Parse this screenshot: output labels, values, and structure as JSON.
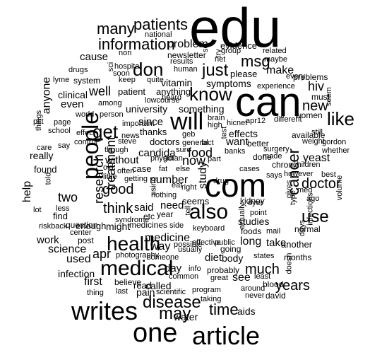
{
  "words": [
    {
      "text": "edu",
      "size": 78
    },
    {
      "text": "can",
      "size": 58
    },
    {
      "text": "com",
      "size": 46
    },
    {
      "text": "one",
      "size": 38
    },
    {
      "text": "article",
      "size": 36
    },
    {
      "text": "writes",
      "size": 36
    },
    {
      "text": "will",
      "size": 34
    },
    {
      "text": "people",
      "size": 32
    },
    {
      "text": "medical",
      "size": 30
    },
    {
      "text": "also",
      "size": 30
    },
    {
      "text": "health",
      "size": 28
    },
    {
      "text": "like",
      "size": 26
    },
    {
      "text": "get",
      "size": 26
    },
    {
      "text": "know",
      "size": 26
    },
    {
      "text": "don",
      "size": 26
    },
    {
      "text": "just",
      "size": 24
    },
    {
      "text": "use",
      "size": 24
    },
    {
      "text": "disease",
      "size": 24
    },
    {
      "text": "may",
      "size": 24
    },
    {
      "text": "many",
      "size": 22
    },
    {
      "text": "information",
      "size": 22
    },
    {
      "text": "patients",
      "size": 22
    },
    {
      "text": "msg",
      "size": 22
    },
    {
      "text": "cancer",
      "size": 22
    },
    {
      "text": "time",
      "size": 22
    },
    {
      "text": "new",
      "size": 20
    },
    {
      "text": "good",
      "size": 20
    },
    {
      "text": "think",
      "size": 20
    },
    {
      "text": "much",
      "size": 20
    },
    {
      "text": "years",
      "size": 20
    },
    {
      "text": "doctor",
      "size": 20
    },
    {
      "text": "treatment",
      "size": 18
    },
    {
      "text": "research",
      "size": 18
    },
    {
      "text": "two",
      "size": 18
    },
    {
      "text": "well",
      "size": 18
    },
    {
      "text": "food",
      "size": 18
    },
    {
      "text": "now",
      "size": 18
    },
    {
      "text": "apr",
      "size": 18
    },
    {
      "text": "hiv",
      "size": 18
    },
    {
      "text": "help",
      "size": 16
    },
    {
      "text": "anyone",
      "size": 16
    },
    {
      "text": "study",
      "size": 16
    },
    {
      "text": "problem",
      "size": 16
    },
    {
      "text": "number",
      "size": 16
    },
    {
      "text": "medicine",
      "size": 16
    },
    {
      "text": "used",
      "size": 16
    },
    {
      "text": "science",
      "size": 16
    },
    {
      "text": "see",
      "size": 16
    },
    {
      "text": "way",
      "size": 16
    },
    {
      "text": "first",
      "size": 16
    },
    {
      "text": "make",
      "size": 16
    },
    {
      "text": "long",
      "size": 16
    },
    {
      "text": "yeast",
      "size": 16
    },
    {
      "text": "day",
      "size": 15
    },
    {
      "text": "work",
      "size": 15
    },
    {
      "text": "cause",
      "size": 15
    },
    {
      "text": "even",
      "size": 15
    },
    {
      "text": "without",
      "size": 15
    },
    {
      "text": "diet",
      "size": 15
    },
    {
      "text": "since",
      "size": 15
    },
    {
      "text": "candida",
      "size": 15
    },
    {
      "text": "said",
      "size": 15
    },
    {
      "text": "need",
      "size": 15
    },
    {
      "text": "want",
      "size": 15
    },
    {
      "text": "take",
      "size": 15
    },
    {
      "text": "vitamin",
      "size": 14
    },
    {
      "text": "really",
      "size": 14
    },
    {
      "text": "infection",
      "size": 14
    },
    {
      "text": "called",
      "size": 14
    },
    {
      "text": "pain",
      "size": 14
    },
    {
      "text": "aids",
      "size": 14
    },
    {
      "text": "water",
      "size": 14
    },
    {
      "text": "might",
      "size": 14
    },
    {
      "text": "symptoms",
      "size": 14
    },
    {
      "text": "studies",
      "size": 14
    },
    {
      "text": "body",
      "size": 14
    },
    {
      "text": "clinical",
      "size": 14
    },
    {
      "text": "something",
      "size": 14
    },
    {
      "text": "university",
      "size": 14
    },
    {
      "text": "effects",
      "size": 14
    },
    {
      "text": "read",
      "size": 13
    },
    {
      "text": "another",
      "size": 13
    },
    {
      "text": "find",
      "size": 13
    },
    {
      "text": "found",
      "size": 13
    },
    {
      "text": "seems",
      "size": 13
    },
    {
      "text": "doctors",
      "size": 13
    },
    {
      "text": "enough",
      "size": 13
    },
    {
      "text": "case",
      "size": 13
    },
    {
      "text": "thanks",
      "size": 13
    },
    {
      "text": "please",
      "size": 13
    },
    {
      "text": "patient",
      "size": 13
    },
    {
      "text": "anything",
      "size": 13
    },
    {
      "text": "evidence",
      "size": 13
    },
    {
      "text": "newsletter",
      "size": 12
    },
    {
      "text": "months",
      "size": 12
    },
    {
      "text": "david",
      "size": 12
    },
    {
      "text": "blood",
      "size": 12
    },
    {
      "text": "normal",
      "size": 12
    },
    {
      "text": "foods",
      "size": 12
    },
    {
      "text": "women",
      "size": 12
    },
    {
      "text": "believe",
      "size": 12
    },
    {
      "text": "year",
      "size": 12
    },
    {
      "text": "system",
      "size": 12
    },
    {
      "text": "etc",
      "size": 12
    },
    {
      "text": "question",
      "size": 12
    },
    {
      "text": "going",
      "size": 12
    },
    {
      "text": "probably",
      "size": 12
    },
    {
      "text": "post",
      "size": 12
    },
    {
      "text": "kidney",
      "size": 12
    },
    {
      "text": "must",
      "size": 12
    },
    {
      "text": "medicines",
      "size": 12
    },
    {
      "text": "better",
      "size": 12
    },
    {
      "text": "problems",
      "size": 12
    },
    {
      "text": "chronic",
      "size": 12
    },
    {
      "text": "available",
      "size": 12
    },
    {
      "text": "done",
      "size": 12
    },
    {
      "text": "keyboard",
      "size": 11
    },
    {
      "text": "actually",
      "size": 11
    },
    {
      "text": "info",
      "size": 11
    },
    {
      "text": "least",
      "size": 11
    },
    {
      "text": "apr12",
      "size": 11
    },
    {
      "text": "different",
      "size": 11
    },
    {
      "text": "taking",
      "size": 11
    },
    {
      "text": "program",
      "size": 11
    },
    {
      "text": "scientific",
      "size": 11
    },
    {
      "text": "brain",
      "size": 11
    },
    {
      "text": "high",
      "size": 11
    },
    {
      "text": "hicnet",
      "size": 11
    },
    {
      "text": "drug",
      "size": 11
    },
    {
      "text": "gordon",
      "size": 11
    },
    {
      "text": "weight",
      "size": 11
    },
    {
      "text": "made",
      "size": 11
    },
    {
      "text": "great",
      "size": 11
    },
    {
      "text": "common",
      "size": 11
    },
    {
      "text": "getting",
      "size": 11
    },
    {
      "text": "whether",
      "size": 11
    },
    {
      "text": "every",
      "size": 11
    },
    {
      "text": "experience",
      "size": 11
    },
    {
      "text": "surgery",
      "size": 11
    },
    {
      "text": "states",
      "size": 11
    },
    {
      "text": "doesn",
      "size": 11
    },
    {
      "text": "around",
      "size": 11
    },
    {
      "text": "never",
      "size": 11
    },
    {
      "text": "point",
      "size": 11
    },
    {
      "text": "dyer",
      "size": 11
    },
    {
      "text": "cases",
      "size": 11
    },
    {
      "text": "gives",
      "size": 11
    },
    {
      "text": "type",
      "size": 11
    },
    {
      "text": "infections",
      "size": 11
    },
    {
      "text": "volume",
      "size": 11
    },
    {
      "text": "best",
      "size": 11
    },
    {
      "text": "however",
      "size": 11
    },
    {
      "text": "children",
      "size": 11
    },
    {
      "text": "still",
      "size": 11
    },
    {
      "text": "things",
      "size": 11
    },
    {
      "text": "pitt",
      "size": 11
    },
    {
      "text": "page",
      "size": 11
    },
    {
      "text": "school",
      "size": 11
    },
    {
      "text": "care",
      "size": 11
    },
    {
      "text": "control",
      "size": 11
    },
    {
      "text": "steve",
      "size": 11
    },
    {
      "text": "say",
      "size": 11
    },
    {
      "text": "though",
      "size": 11
    },
    {
      "text": "old",
      "size": 11
    },
    {
      "text": "often",
      "size": 11
    },
    {
      "text": "little",
      "size": 11
    },
    {
      "text": "nothing",
      "size": 11
    },
    {
      "text": "using",
      "size": 11
    },
    {
      "text": "lot",
      "size": 11
    },
    {
      "text": "less",
      "size": 11
    },
    {
      "text": "told",
      "size": 11
    },
    {
      "text": "riskback",
      "size": 11
    },
    {
      "text": "center",
      "size": 11
    },
    {
      "text": "syndrome",
      "size": 11
    },
    {
      "text": "side",
      "size": 11
    },
    {
      "text": "tell",
      "size": 11
    },
    {
      "text": "usually",
      "size": 11
    },
    {
      "text": "someone",
      "size": 11
    },
    {
      "text": "photography",
      "size": 11
    },
    {
      "text": "possible",
      "size": 11
    },
    {
      "text": "effective",
      "size": 11
    },
    {
      "text": "public",
      "size": 11
    },
    {
      "text": "last",
      "size": 11
    },
    {
      "text": "thing",
      "size": 11
    },
    {
      "text": "drugs",
      "size": 11
    },
    {
      "text": "hospital",
      "size": 11
    },
    {
      "text": "soon",
      "size": 11
    },
    {
      "text": "lyme",
      "size": 11
    },
    {
      "text": "keep",
      "size": 11
    },
    {
      "text": "quite",
      "size": 11
    },
    {
      "text": "sci",
      "size": 11
    },
    {
      "text": "non",
      "size": 11
    },
    {
      "text": "national",
      "size": 11
    },
    {
      "text": "lowcourse",
      "size": 11
    },
    {
      "text": "results",
      "size": 11
    },
    {
      "text": "human",
      "size": 11
    },
    {
      "text": "group",
      "size": 11
    },
    {
      "text": "related",
      "size": 11
    },
    {
      "text": "maybe",
      "size": 11
    },
    {
      "text": "heard",
      "size": 11
    },
    {
      "text": "among",
      "size": 11
    },
    {
      "text": "person",
      "size": 11
    },
    {
      "text": "important",
      "size": 11
    },
    {
      "text": "news",
      "size": 11
    },
    {
      "text": "world",
      "size": 11
    },
    {
      "text": "effect",
      "size": 11
    },
    {
      "text": "geb",
      "size": 11
    },
    {
      "text": "general",
      "size": 11
    },
    {
      "text": "fact",
      "size": 11
    },
    {
      "text": "test",
      "size": 11
    },
    {
      "text": "banks",
      "size": 11
    },
    {
      "text": "part",
      "size": 11
    },
    {
      "text": "physician",
      "size": 11
    },
    {
      "text": "got",
      "size": 11
    },
    {
      "text": "sure",
      "size": 11
    },
    {
      "text": "fat",
      "size": 11
    },
    {
      "text": "else",
      "size": 11
    },
    {
      "text": "right",
      "size": 11
    },
    {
      "text": "eat",
      "size": 11
    },
    {
      "text": "ago",
      "size": 11
    },
    {
      "text": "med",
      "size": 11
    },
    {
      "text": "seem",
      "size": 11
    },
    {
      "text": "days",
      "size": 11
    },
    {
      "text": "says",
      "size": 11
    },
    {
      "text": "mail",
      "size": 11
    },
    {
      "text": "try",
      "size": 11
    },
    {
      "text": "sc",
      "size": 11
    },
    {
      "text": "net",
      "size": 11
    },
    {
      "text": "fl",
      "size": 11
    }
  ]
}
